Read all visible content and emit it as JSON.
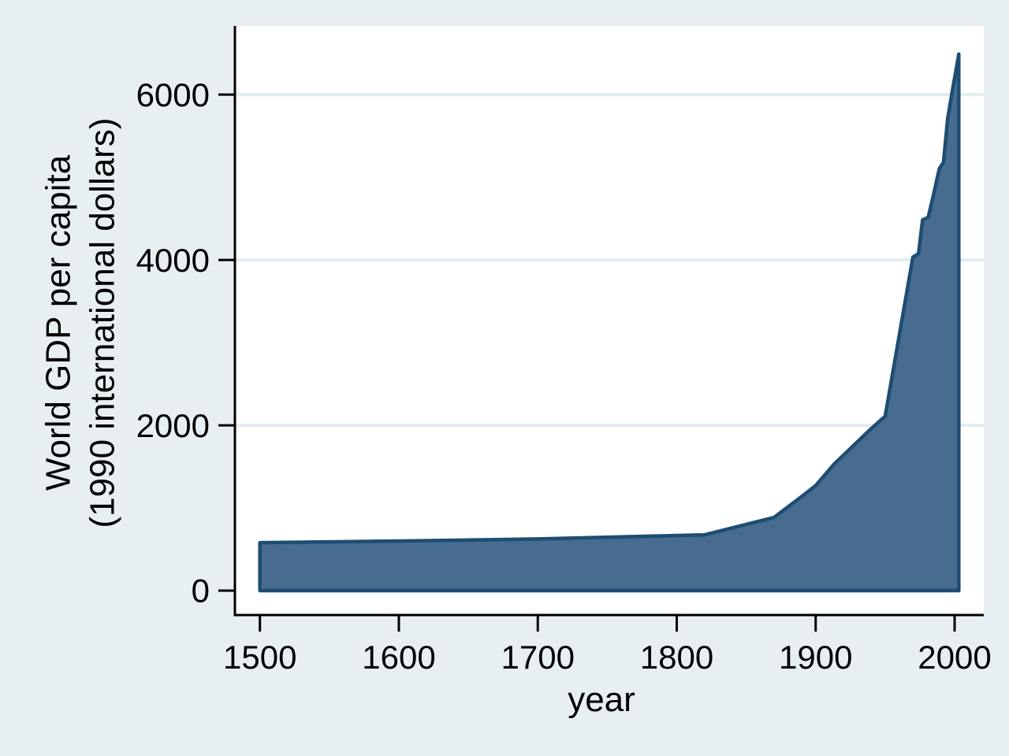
{
  "figure": {
    "background_color": "#e8eff2",
    "plot_background_color": "#ffffff",
    "axis_color": "#000000",
    "gridline_color": "#e2ecf1",
    "text_color": "#000000"
  },
  "chart_data": {
    "type": "area",
    "title": "",
    "xlabel": "year",
    "ylabel_line1": "World GDP per capita",
    "ylabel_line2": "(1990 international dollars)",
    "legend": "none",
    "grid": "horizontal",
    "xlim": [
      1482,
      2021
    ],
    "ylim": [
      -295,
      6830
    ],
    "xticks": [
      1500,
      1600,
      1700,
      1800,
      1900,
      2000
    ],
    "yticks": [
      0,
      2000,
      4000,
      6000
    ],
    "gridlines_y": [
      2000,
      4000,
      6000
    ],
    "series": [
      {
        "name": "World GDP per capita (1990 international dollars)",
        "fill_color": "#476c8f",
        "line_color": "#1d4d73",
        "baseline": 0,
        "points": [
          [
            1500,
            580
          ],
          [
            1600,
            600
          ],
          [
            1700,
            625
          ],
          [
            1820,
            675
          ],
          [
            1870,
            885
          ],
          [
            1890,
            1140
          ],
          [
            1900,
            1270
          ],
          [
            1913,
            1525
          ],
          [
            1930,
            1800
          ],
          [
            1940,
            1960
          ],
          [
            1950,
            2110
          ],
          [
            1970,
            4035
          ],
          [
            1974,
            4075
          ],
          [
            1977,
            4485
          ],
          [
            1981,
            4515
          ],
          [
            1985,
            4800
          ],
          [
            1989,
            5105
          ],
          [
            1992,
            5180
          ],
          [
            1995,
            5710
          ],
          [
            1998,
            6010
          ],
          [
            2003,
            6490
          ]
        ]
      }
    ]
  }
}
